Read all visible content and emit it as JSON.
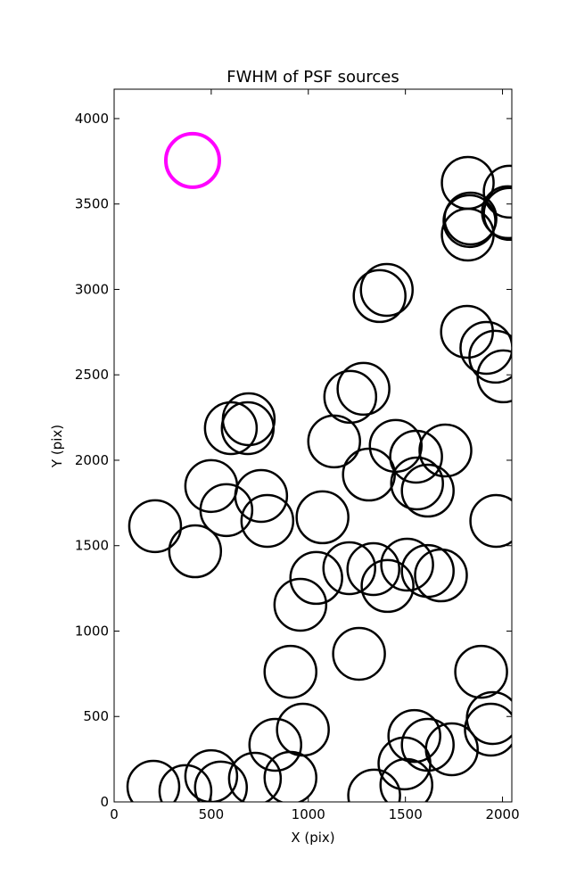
{
  "chart_data": {
    "type": "scatter",
    "title": "FWHM of PSF sources",
    "x_label": "X (pix)",
    "y_label": "Y (pix)",
    "xlim": [
      0,
      2048
    ],
    "ylim": [
      0,
      4172
    ],
    "xticks": [
      0,
      500,
      1000,
      1500,
      2000
    ],
    "yticks": [
      0,
      500,
      1000,
      1500,
      2000,
      2500,
      3000,
      3500,
      4000
    ],
    "series": [
      {
        "color": "#ff00ff",
        "x": [
          404
        ],
        "values": [
          3755
        ]
      },
      {
        "color": "#000000",
        "x": [
          1821,
          2037,
          1830,
          1835,
          2028,
          2037,
          1821,
          1367,
          1404,
          1817,
          1917,
          1963,
          2005,
          1216,
          1284,
          601,
          688,
          693,
          1133,
          1450,
          1555,
          1706,
          1312,
          1560,
          1615,
          500,
          578,
          757,
          789,
          1073,
          1968,
          211,
          417,
          1509,
          1615,
          1683,
          1211,
          1335,
          1408,
          1041,
          959,
          908,
          1261,
          1890,
          1950,
          1940,
          972,
          830,
          1546,
          1615,
          1739,
          1495,
          1505,
          1339,
          908,
          725,
          500,
          550,
          367,
          202
        ],
        "values": [
          3624,
          3572,
          3400,
          3415,
          3452,
          3442,
          3321,
          2961,
          2997,
          2752,
          2658,
          2606,
          2491,
          2371,
          2418,
          2188,
          2188,
          2240,
          2110,
          2084,
          2021,
          2057,
          1916,
          1864,
          1822,
          1849,
          1708,
          1791,
          1645,
          1666,
          1645,
          1614,
          1467,
          1389,
          1352,
          1326,
          1368,
          1363,
          1264,
          1311,
          1154,
          762,
          867,
          762,
          491,
          423,
          423,
          334,
          386,
          334,
          308,
          225,
          99,
          37,
          141,
          136,
          151,
          84,
          63,
          89
        ]
      }
    ]
  }
}
